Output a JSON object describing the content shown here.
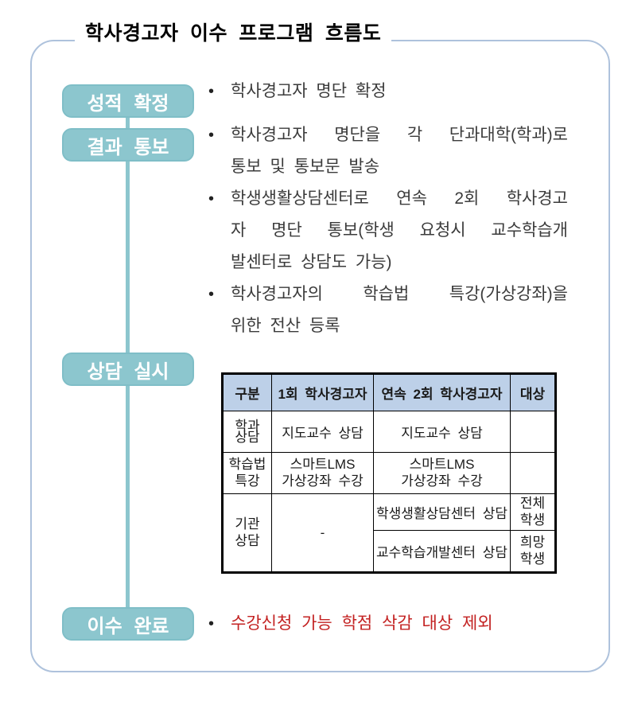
{
  "title": "학사경고자 이수 프로그램 흐름도",
  "bullet": "•",
  "colors": {
    "step_box_fill": "#8cc6ce",
    "step_box_border": "#7fbec7",
    "frame_border": "#aec2dc",
    "table_header_bg": "#bdd0e8",
    "highlight_red": "#c32222"
  },
  "steps": {
    "grade": "성적 확정",
    "notify": "결과 통보",
    "counsel": "상담 실시",
    "complete": "이수 완료"
  },
  "notes": {
    "grade": {
      "b1l1": "학사경고자 명단 확정"
    },
    "notify": {
      "b1l1": "학사경고자 명단을 각 단과대학(학과)로",
      "b1l2": "통보 및 통보문 발송",
      "b2l1": "학생생활상담센터로 연속 2회 학사경고",
      "b2l2": "자 명단 통보(학생 요청시 교수학습개",
      "b2l3": "발센터로 상담도 가능)",
      "b3l1": "학사경고자의 학습법 특강(가상강좌)을",
      "b3l2": "위한 전산 등록"
    },
    "complete": {
      "b1l1": "수강신청 가능 학점 삭감 대상 제외"
    }
  },
  "table": {
    "headers": [
      "구분",
      "1회 학사경고자",
      "연속 2회 학사경고자",
      "대상"
    ],
    "rows": {
      "dept": {
        "c0l1": "학과",
        "c0l2": "상담",
        "c1": "지도교수 상담",
        "c2": "지도교수 상담",
        "c3": ""
      },
      "study": {
        "c0l1": "학습법",
        "c0l2": "특강",
        "c1l1": "스마트LMS",
        "c1l2": "가상강좌 수강",
        "c2l1": "스마트LMS",
        "c2l2": "가상강좌 수강",
        "c3": ""
      },
      "org": {
        "c0l1": "기관",
        "c0l2": "상담",
        "c1": "-",
        "c2a": "학생생활상담센터 상담",
        "c3al1": "전체",
        "c3al2": "학생",
        "c2b": "교수학습개발센터 상담",
        "c3bl1": "희망",
        "c3bl2": "학생"
      }
    }
  }
}
